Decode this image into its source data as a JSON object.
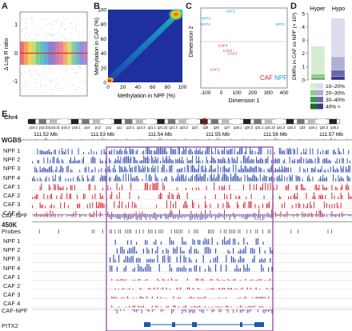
{
  "panel_labels": {
    "a": "A",
    "b": "B",
    "c": "C",
    "d": "D",
    "e": "E"
  },
  "colors": {
    "npf": "#3a55b4",
    "caf": "#d52a3a",
    "diff": "#7a6ab8",
    "box": "#8a3aa0",
    "hyper_light": "#d6ecd0",
    "hyper_mid": "#8ecb8a",
    "hyper_dark": "#3a9a4a",
    "hypo_light": "#dcdcee",
    "hypo_mid": "#b0b0d6",
    "hypo_dark": "#6a6ab0"
  },
  "chart_data": [
    {
      "type": "bar",
      "panel": "A",
      "ylabel": "Δ Log R ratio",
      "yticks": [
        "1",
        "0",
        "-1"
      ],
      "ylim": [
        -1.2,
        1.2
      ]
    },
    {
      "type": "heatmap",
      "panel": "B",
      "xlabel": "Methylation in NPF (%)",
      "ylabel": "Methylation in CAF (%)",
      "xticks": [
        "0",
        "20",
        "40",
        "60",
        "80",
        "100"
      ],
      "yticks": [
        "0",
        "20",
        "40",
        "60",
        "80",
        "100"
      ],
      "xlim": [
        0,
        100
      ],
      "ylim": [
        0,
        100
      ]
    },
    {
      "type": "scatter",
      "panel": "C",
      "xlabel": "Dimension 1",
      "ylabel": "Dimension 2",
      "xticks": [
        "-100",
        "0",
        "100",
        "200",
        "300",
        "400"
      ],
      "xlim": [
        -130,
        420
      ],
      "legend": [
        "CAF",
        "NPF"
      ],
      "points": [
        {
          "label": "NPF1",
          "x": 60,
          "y": 0.55,
          "group": "NPF"
        },
        {
          "label": "NPF2",
          "x": -95,
          "y": 0.42,
          "group": "NPF"
        },
        {
          "label": "NPF4",
          "x": -100,
          "y": 0.3,
          "group": "NPF"
        },
        {
          "label": "NPF3",
          "x": 375,
          "y": 0.3,
          "group": "NPF"
        },
        {
          "label": "CAF4",
          "x": 10,
          "y": -0.1,
          "group": "CAF"
        },
        {
          "label": "CAF2",
          "x": 40,
          "y": -0.2,
          "group": "CAF"
        },
        {
          "label": "CAF3",
          "x": 70,
          "y": -0.25,
          "group": "CAF"
        },
        {
          "label": "CAF1",
          "x": -40,
          "y": -0.55,
          "group": "CAF"
        }
      ]
    },
    {
      "type": "bar",
      "panel": "D",
      "ylabel": "DMRs in CAF vs NPF (× 10³)",
      "yticks": [
        "0",
        "1",
        "2",
        "3",
        "4",
        "5"
      ],
      "ylim": [
        0,
        5
      ],
      "categories": [
        "Hyper",
        "Hypo"
      ],
      "series": [
        {
          "name": "10–20%",
          "values": [
            2.1,
            2.9
          ]
        },
        {
          "name": "20–30%",
          "values": [
            0.3,
            1.0
          ]
        },
        {
          "name": "30–40%",
          "values": [
            0.1,
            0.5
          ]
        },
        {
          "name": "40% <",
          "values": [
            0.05,
            0.25
          ]
        }
      ]
    }
  ],
  "ideogram": {
    "chr": "Chr4",
    "bands": [
      "p16.2",
      "p15.33",
      "p15.31",
      "p15.2",
      "p15.1",
      "p14",
      "p12",
      "p11",
      "q11",
      "q13.1",
      "q13.3",
      "q21.1",
      "q21.22",
      "q21.3",
      "q22.2",
      "q23",
      "q25",
      "q26",
      "q27",
      "q28.1",
      "q28.3",
      "q31.1",
      "q31.22",
      "q31.3",
      "q32.2",
      "q33",
      "q34.1",
      "q34.3",
      "q35.2"
    ]
  },
  "wgbs": {
    "title": "WGBS",
    "coords": [
      "111.52 Mb",
      "111.53 Mb",
      "111.54 Mb",
      "111.55 Mb",
      "111.56 Mb",
      "111.57 Mb"
    ],
    "tracks": [
      "NPF 1",
      "NPF 2",
      "NPF 3",
      "NPF 4",
      "CAF 1",
      "CAF 2",
      "CAF 3",
      "CAF 4"
    ],
    "diff": "CAF-NPF"
  },
  "k450": {
    "title": "450K",
    "probes": "Probes",
    "tracks": [
      "NPF 1",
      "NPF 2",
      "NPF 3",
      "NPF 4",
      "CAF 1",
      "CAF 2",
      "CAF 3",
      "CAF 4"
    ],
    "diff": "CAF-NPF"
  },
  "gene": "PITX2"
}
